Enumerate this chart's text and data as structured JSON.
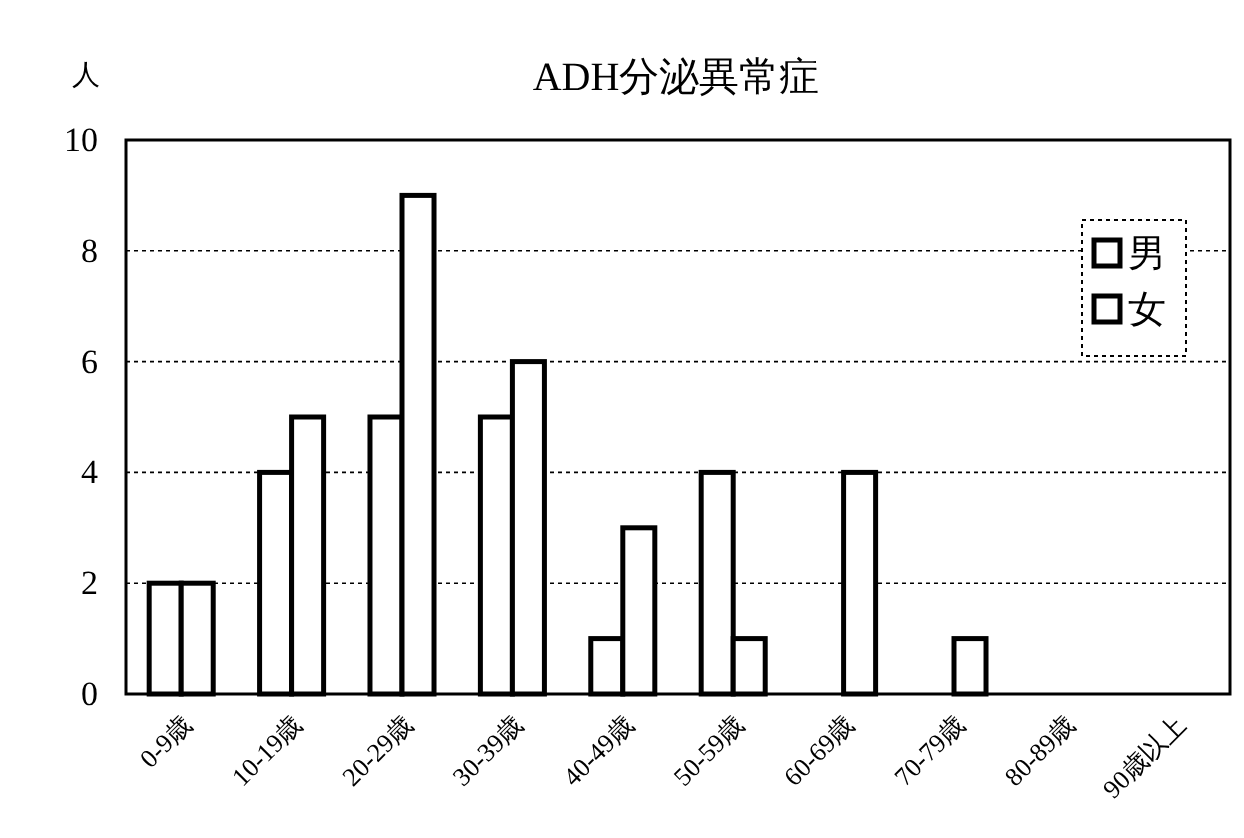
{
  "chart_data": {
    "type": "bar",
    "title": "ADH分泌異常症",
    "ylabel": "人",
    "categories": [
      "0-9歳",
      "10-19歳",
      "20-29歳",
      "30-39歳",
      "40-49歳",
      "50-59歳",
      "60-69歳",
      "70-79歳",
      "80-89歳",
      "90歳以上"
    ],
    "series": [
      {
        "name": "男",
        "color": "#ffffff",
        "values": [
          2,
          4,
          5,
          5,
          1,
          4,
          0,
          0,
          0,
          0
        ]
      },
      {
        "name": "女",
        "color": "#ffffff",
        "values": [
          2,
          5,
          9,
          6,
          3,
          1,
          4,
          1,
          0,
          0
        ]
      }
    ],
    "ylim": [
      0,
      10
    ],
    "yticks": [
      0,
      2,
      4,
      6,
      8,
      10
    ],
    "grid": "y",
    "legend": "top right"
  }
}
